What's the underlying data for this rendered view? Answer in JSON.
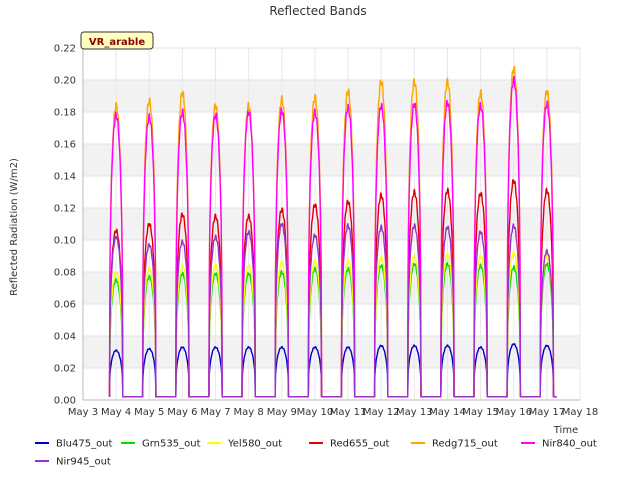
{
  "chart_data": {
    "type": "line",
    "title": "Reflected Bands",
    "ylabel": "Reflected Radiation (W/m2)",
    "xlabel": "Time",
    "tag": "VR_arable",
    "ylim": [
      0.0,
      0.22
    ],
    "yticks": [
      0.0,
      0.02,
      0.04,
      0.06,
      0.08,
      0.1,
      0.12,
      0.14,
      0.16,
      0.18,
      0.2,
      0.22
    ],
    "xlim": [
      3,
      18
    ],
    "xticks": [
      {
        "value": 3,
        "label": "May 3"
      },
      {
        "value": 4,
        "label": "May 4"
      },
      {
        "value": 5,
        "label": "May 5"
      },
      {
        "value": 6,
        "label": "May 6"
      },
      {
        "value": 7,
        "label": "May 7"
      },
      {
        "value": 8,
        "label": "May 8"
      },
      {
        "value": 9,
        "label": "May 9"
      },
      {
        "value": 10,
        "label": "May 10"
      },
      {
        "value": 11,
        "label": "May 11"
      },
      {
        "value": 12,
        "label": "May 12"
      },
      {
        "value": 13,
        "label": "May 13"
      },
      {
        "value": 14,
        "label": "May 14"
      },
      {
        "value": 15,
        "label": "May 15"
      },
      {
        "value": 16,
        "label": "May 16"
      },
      {
        "value": 17,
        "label": "May 17"
      },
      {
        "value": 18,
        "label": "May 18"
      }
    ],
    "grid": true,
    "legend_position": "bottom",
    "days": [
      4,
      5,
      6,
      7,
      8,
      9,
      10,
      11,
      12,
      13,
      14,
      15,
      16,
      17
    ],
    "series": [
      {
        "name": "Blu475_out",
        "color": "#0000cc",
        "daily_peak": [
          0.031,
          0.032,
          0.033,
          0.033,
          0.033,
          0.033,
          0.033,
          0.033,
          0.034,
          0.034,
          0.034,
          0.033,
          0.035,
          0.034
        ]
      },
      {
        "name": "Grn535_out",
        "color": "#00dd00",
        "daily_peak": [
          0.075,
          0.077,
          0.079,
          0.079,
          0.079,
          0.08,
          0.082,
          0.082,
          0.084,
          0.085,
          0.085,
          0.084,
          0.083,
          0.085
        ]
      },
      {
        "name": "Yel580_out",
        "color": "#ffff00",
        "daily_peak": [
          0.08,
          0.082,
          0.084,
          0.084,
          0.084,
          0.086,
          0.087,
          0.087,
          0.089,
          0.09,
          0.091,
          0.09,
          0.092,
          0.09
        ]
      },
      {
        "name": "Red655_out",
        "color": "#dd0000",
        "daily_peak": [
          0.106,
          0.11,
          0.116,
          0.115,
          0.115,
          0.119,
          0.122,
          0.124,
          0.128,
          0.13,
          0.131,
          0.129,
          0.137,
          0.131
        ]
      },
      {
        "name": "Redg715_out",
        "color": "#ffa500",
        "daily_peak": [
          0.184,
          0.187,
          0.192,
          0.184,
          0.184,
          0.188,
          0.189,
          0.193,
          0.199,
          0.199,
          0.199,
          0.192,
          0.207,
          0.193
        ]
      },
      {
        "name": "Nir840_out",
        "color": "#ff00ff",
        "daily_peak": [
          0.178,
          0.177,
          0.18,
          0.178,
          0.18,
          0.181,
          0.18,
          0.183,
          0.184,
          0.185,
          0.186,
          0.184,
          0.2,
          0.185
        ]
      },
      {
        "name": "Nir945_out",
        "color": "#9932cc",
        "daily_peak": [
          0.102,
          0.097,
          0.099,
          0.102,
          0.105,
          0.11,
          0.103,
          0.109,
          0.108,
          0.109,
          0.108,
          0.105,
          0.109,
          0.093
        ]
      }
    ]
  }
}
